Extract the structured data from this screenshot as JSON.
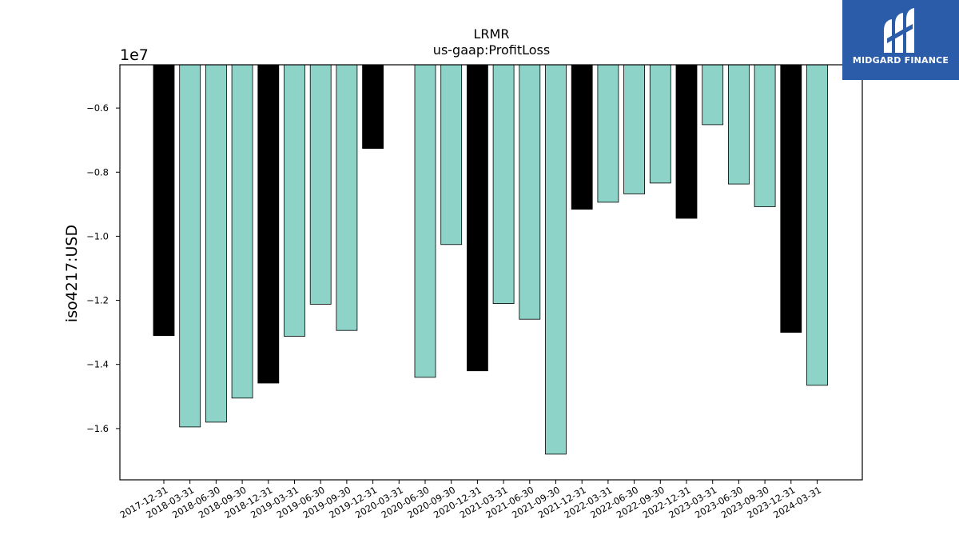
{
  "brand": {
    "name": "MIDGARD FINANCE",
    "background": "#2a5caa"
  },
  "chart_data": {
    "type": "bar",
    "title": "LRMR",
    "subtitle": "us-gaap:ProfitLoss",
    "ylabel": "iso4217:USD",
    "xlabel": "",
    "offset_label": "1e7",
    "ylim": [
      -17600000,
      -4650000
    ],
    "yticks": [
      -6000000,
      -8000000,
      -10000000,
      -12000000,
      -14000000,
      -16000000
    ],
    "ytick_labels": [
      "−0.6",
      "−0.8",
      "−1.0",
      "−1.2",
      "−1.4",
      "−1.6"
    ],
    "grid": false,
    "legend": "none",
    "colors": {
      "quarterly": "#8dd3c7",
      "year_end": "#000000"
    },
    "categories": [
      "2017-12-31",
      "2018-03-31",
      "2018-06-30",
      "2018-09-30",
      "2018-12-31",
      "2019-03-31",
      "2019-06-30",
      "2019-09-30",
      "2019-12-31",
      "2020-03-31",
      "2020-06-30",
      "2020-09-30",
      "2020-12-31",
      "2021-03-31",
      "2021-06-30",
      "2021-09-30",
      "2021-12-31",
      "2022-03-31",
      "2022-06-30",
      "2022-09-30",
      "2022-12-31",
      "2023-03-31",
      "2023-06-30",
      "2023-09-30",
      "2023-12-31",
      "2024-03-31"
    ],
    "values": [
      -13100000,
      -15950000,
      -15800000,
      -15050000,
      -14580000,
      -13120000,
      -12120000,
      -12940000,
      -7260000,
      null,
      -14400000,
      -10260000,
      -14200000,
      -12100000,
      -12590000,
      -16800000,
      -9160000,
      -8940000,
      -8680000,
      -8340000,
      -9440000,
      -6520000,
      -8370000,
      -9080000,
      -13000000,
      -14650000
    ],
    "year_end": [
      true,
      false,
      false,
      false,
      true,
      false,
      false,
      false,
      true,
      false,
      false,
      false,
      true,
      false,
      false,
      false,
      true,
      false,
      false,
      false,
      true,
      false,
      false,
      false,
      true,
      false
    ]
  }
}
